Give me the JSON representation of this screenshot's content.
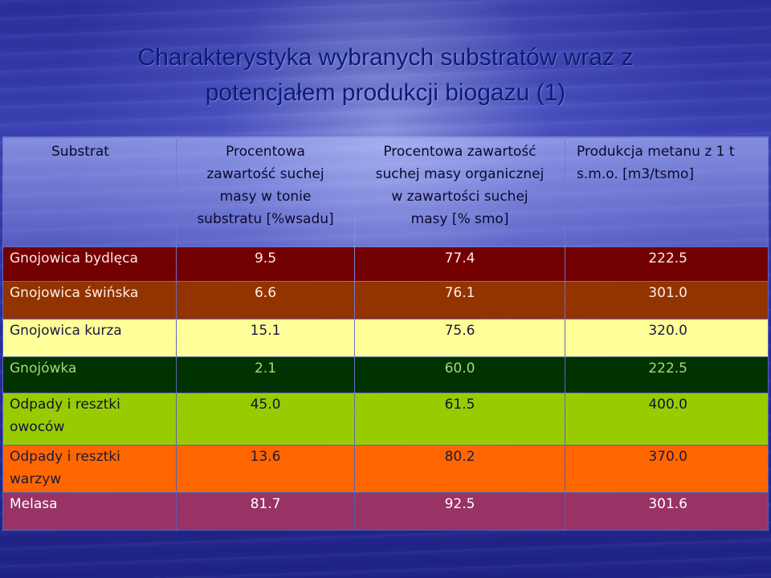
{
  "slide": {
    "title_line1": "Charakterystyka wybranych substratów wraz z",
    "title_line2": "potencjałem produkcji biogazu (1)"
  },
  "table": {
    "headers": [
      "Substrat",
      "Procentowa zawartość suchej masy w tonie substratu [%wsadu]",
      "Procentowa zawartość suchej masy organicznej w zawartości suchej masy  [% smo]",
      "Produkcja metanu z 1 t s.m.o. [m3/tsmo]"
    ],
    "header_lines": [
      [
        "Substrat"
      ],
      [
        "Procentowa",
        "zawartość suchej",
        "masy w tonie",
        "substratu [%wsadu]"
      ],
      [
        "Procentowa zawartość",
        "suchej masy organicznej",
        "w zawartości suchej",
        "masy  [% smo]"
      ],
      [
        "Produkcja metanu z 1 t",
        "s.m.o. [m3/tsmo]"
      ]
    ],
    "rows": [
      {
        "substrat": "Gnojowica bydlęca",
        "sm": "9.5",
        "smo": "77.4",
        "metan": "222.5",
        "color": "#730000"
      },
      {
        "substrat": "Gnojowica świńska",
        "sm": "6.6",
        "smo": "76.1",
        "metan": "301.0",
        "color": "#933300"
      },
      {
        "substrat": "Gnojowica kurza",
        "sm": "15.1",
        "smo": "75.6",
        "metan": "320.0",
        "color": "#ffff99"
      },
      {
        "substrat": "Gnojówka",
        "sm": "2.1",
        "smo": "60.0",
        "metan": "222.5",
        "color": "#003300"
      },
      {
        "substrat": "Odpady i resztki owoców",
        "sm": "45.0",
        "smo": "61.5",
        "metan": "400.0",
        "color": "#99cc00"
      },
      {
        "substrat": "Odpady i resztki warzyw",
        "sm": "13.6",
        "smo": "80.2",
        "metan": "370.0",
        "color": "#ff6600"
      },
      {
        "substrat": "Melasa",
        "sm": "81.7",
        "smo": "92.5",
        "metan": "301.6",
        "color": "#993366"
      }
    ]
  }
}
